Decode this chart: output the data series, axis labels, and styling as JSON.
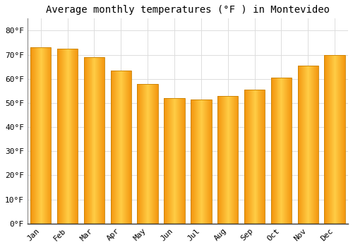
{
  "title": "Average monthly temperatures (°F ) in Montevideo",
  "months": [
    "Jan",
    "Feb",
    "Mar",
    "Apr",
    "May",
    "Jun",
    "Jul",
    "Aug",
    "Sep",
    "Oct",
    "Nov",
    "Dec"
  ],
  "values": [
    73,
    72.5,
    69,
    63.5,
    58,
    52,
    51.5,
    53,
    55.5,
    60.5,
    65.5,
    70
  ],
  "bar_color_center": "#FFCC44",
  "bar_color_edge": "#F5A000",
  "bar_edge_color": "#C88000",
  "background_color": "#FFFFFF",
  "plot_bg_color": "#FFFFFF",
  "grid_color": "#DDDDDD",
  "yticks": [
    0,
    10,
    20,
    30,
    40,
    50,
    60,
    70,
    80
  ],
  "ytick_labels": [
    "0°F",
    "10°F",
    "20°F",
    "30°F",
    "40°F",
    "50°F",
    "60°F",
    "70°F",
    "80°F"
  ],
  "ylim": [
    0,
    85
  ],
  "title_fontsize": 10,
  "tick_fontsize": 8
}
